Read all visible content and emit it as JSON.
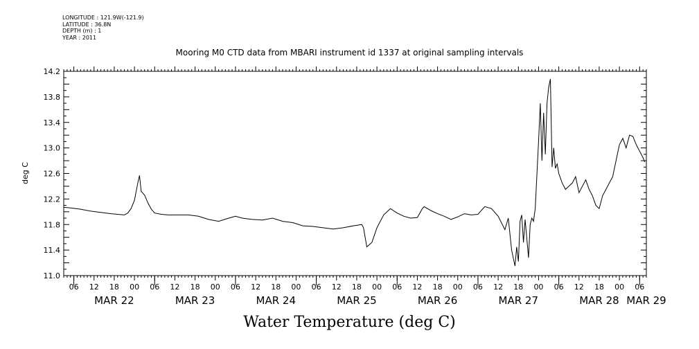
{
  "header": {
    "longitude": "LONGITUDE : 121.9W(-121.9)",
    "latitude": "LATITUDE : 36.8N",
    "depth": "DEPTH (m) : 1",
    "year": "YEAR : 2011"
  },
  "chart_data": {
    "type": "line",
    "title": "Mooring M0 CTD data from MBARI instrument id 1337 at original sampling intervals",
    "xlabel": "Water Temperature (deg C)",
    "ylabel": "deg C",
    "ylim": [
      11.0,
      14.2
    ],
    "yticks": [
      "11.0",
      "11.4",
      "11.8",
      "12.2",
      "12.6",
      "13.0",
      "13.4",
      "13.8",
      "14.2"
    ],
    "xlim": [
      "2011-03-21T21:00",
      "2011-03-29T02:00"
    ],
    "hour_ticks": [
      "06",
      "12",
      "18",
      "00",
      "06",
      "12",
      "18",
      "00",
      "06",
      "12",
      "18",
      "00",
      "06",
      "12",
      "18",
      "00",
      "06",
      "12",
      "18",
      "00",
      "06",
      "12",
      "18",
      "00",
      "06",
      "12",
      "18",
      "00",
      "06",
      "12",
      "18",
      "00"
    ],
    "day_labels": [
      "MAR 22",
      "MAR 23",
      "MAR 24",
      "MAR 25",
      "MAR 26",
      "MAR 27",
      "MAR 28",
      "MAR 29"
    ],
    "series": [
      {
        "color": "#000000",
        "x": [
          "2011-03-21T21:00",
          "2011-03-21T23:00",
          "2011-03-22T02:00",
          "2011-03-22T05:00",
          "2011-03-22T08:00",
          "2011-03-22T11:00",
          "2011-03-22T13:00",
          "2011-03-22T15:00",
          "2011-03-22T16:00",
          "2011-03-22T17:00",
          "2011-03-22T18:00",
          "2011-03-22T19:00",
          "2011-03-22T19:30",
          "2011-03-22T20:00",
          "2011-03-22T21:00",
          "2011-03-22T22:00",
          "2011-03-22T23:00",
          "2011-03-23T00:00",
          "2011-03-23T02:00",
          "2011-03-23T04:00",
          "2011-03-23T07:00",
          "2011-03-23T10:00",
          "2011-03-23T13:00",
          "2011-03-23T16:00",
          "2011-03-23T19:00",
          "2011-03-23T22:00",
          "2011-03-24T00:00",
          "2011-03-24T02:00",
          "2011-03-24T05:00",
          "2011-03-24T08:00",
          "2011-03-24T11:00",
          "2011-03-24T14:00",
          "2011-03-24T17:00",
          "2011-03-24T20:00",
          "2011-03-24T23:00",
          "2011-03-25T02:00",
          "2011-03-25T05:00",
          "2011-03-25T08:00",
          "2011-03-25T11:00",
          "2011-03-25T13:30",
          "2011-03-25T14:00",
          "2011-03-25T15:00",
          "2011-03-25T16:30",
          "2011-03-25T18:00",
          "2011-03-25T20:00",
          "2011-03-25T22:00",
          "2011-03-26T00:00",
          "2011-03-26T02:00",
          "2011-03-26T04:00",
          "2011-03-26T06:00",
          "2011-03-26T07:30",
          "2011-03-26T08:00",
          "2011-03-26T10:00",
          "2011-03-26T12:00",
          "2011-03-26T14:00",
          "2011-03-26T16:00",
          "2011-03-26T18:00",
          "2011-03-26T20:00",
          "2011-03-26T22:00",
          "2011-03-27T00:00",
          "2011-03-27T02:00",
          "2011-03-27T04:00",
          "2011-03-27T06:00",
          "2011-03-27T08:00",
          "2011-03-27T09:00",
          "2011-03-27T10:00",
          "2011-03-27T11:00",
          "2011-03-27T11:30",
          "2011-03-27T12:00",
          "2011-03-27T12:30",
          "2011-03-27T13:00",
          "2011-03-27T13:30",
          "2011-03-27T14:00",
          "2011-03-27T15:00",
          "2011-03-27T15:30",
          "2011-03-27T16:00",
          "2011-03-27T16:30",
          "2011-03-27T17:00",
          "2011-03-27T18:00",
          "2011-03-27T18:30",
          "2011-03-27T19:00",
          "2011-03-27T19:30",
          "2011-03-27T20:00",
          "2011-03-27T20:30",
          "2011-03-27T21:00",
          "2011-03-27T21:30",
          "2011-03-27T22:00",
          "2011-03-27T22:30",
          "2011-03-27T23:00",
          "2011-03-27T23:30",
          "2011-03-28T00:00",
          "2011-03-28T01:00",
          "2011-03-28T02:00",
          "2011-03-28T03:00",
          "2011-03-28T04:00",
          "2011-03-28T05:00",
          "2011-03-28T06:00",
          "2011-03-28T08:00",
          "2011-03-28T09:00",
          "2011-03-28T10:00",
          "2011-03-28T11:00",
          "2011-03-28T12:00",
          "2011-03-28T13:00",
          "2011-03-28T14:00",
          "2011-03-28T16:00",
          "2011-03-28T18:00",
          "2011-03-28T19:00",
          "2011-03-28T20:00",
          "2011-03-28T21:00",
          "2011-03-28T22:00",
          "2011-03-28T23:00",
          "2011-03-29T00:00",
          "2011-03-29T01:00",
          "2011-03-29T01:30"
        ],
        "y": [
          12.07,
          12.06,
          12.04,
          12.01,
          11.99,
          11.97,
          11.96,
          11.95,
          11.98,
          12.05,
          12.18,
          12.45,
          12.57,
          12.32,
          12.26,
          12.14,
          12.04,
          11.98,
          11.96,
          11.95,
          11.95,
          11.95,
          11.93,
          11.88,
          11.85,
          11.9,
          11.93,
          11.9,
          11.88,
          11.87,
          11.9,
          11.85,
          11.83,
          11.78,
          11.77,
          11.75,
          11.73,
          11.75,
          11.78,
          11.8,
          11.75,
          11.45,
          11.52,
          11.75,
          11.95,
          12.05,
          11.98,
          11.93,
          11.9,
          11.91,
          12.05,
          12.08,
          12.02,
          11.97,
          11.93,
          11.88,
          11.92,
          11.97,
          11.95,
          11.96,
          12.08,
          12.05,
          11.93,
          11.72,
          11.9,
          11.4,
          11.15,
          11.45,
          11.22,
          11.85,
          11.95,
          11.52,
          11.88,
          11.28,
          11.8,
          11.9,
          11.85,
          12.05,
          13.1,
          13.7,
          12.8,
          13.55,
          12.9,
          13.7,
          13.95,
          14.08,
          12.7,
          13.0,
          12.68,
          12.75,
          12.6,
          12.45,
          12.35,
          12.4,
          12.45,
          12.55,
          12.3,
          12.5,
          12.35,
          12.25,
          12.1,
          12.05,
          12.25,
          12.35,
          12.55,
          13.05,
          13.15,
          13.0,
          13.2,
          13.18,
          13.05,
          12.95,
          12.85,
          12.78
        ]
      }
    ]
  }
}
